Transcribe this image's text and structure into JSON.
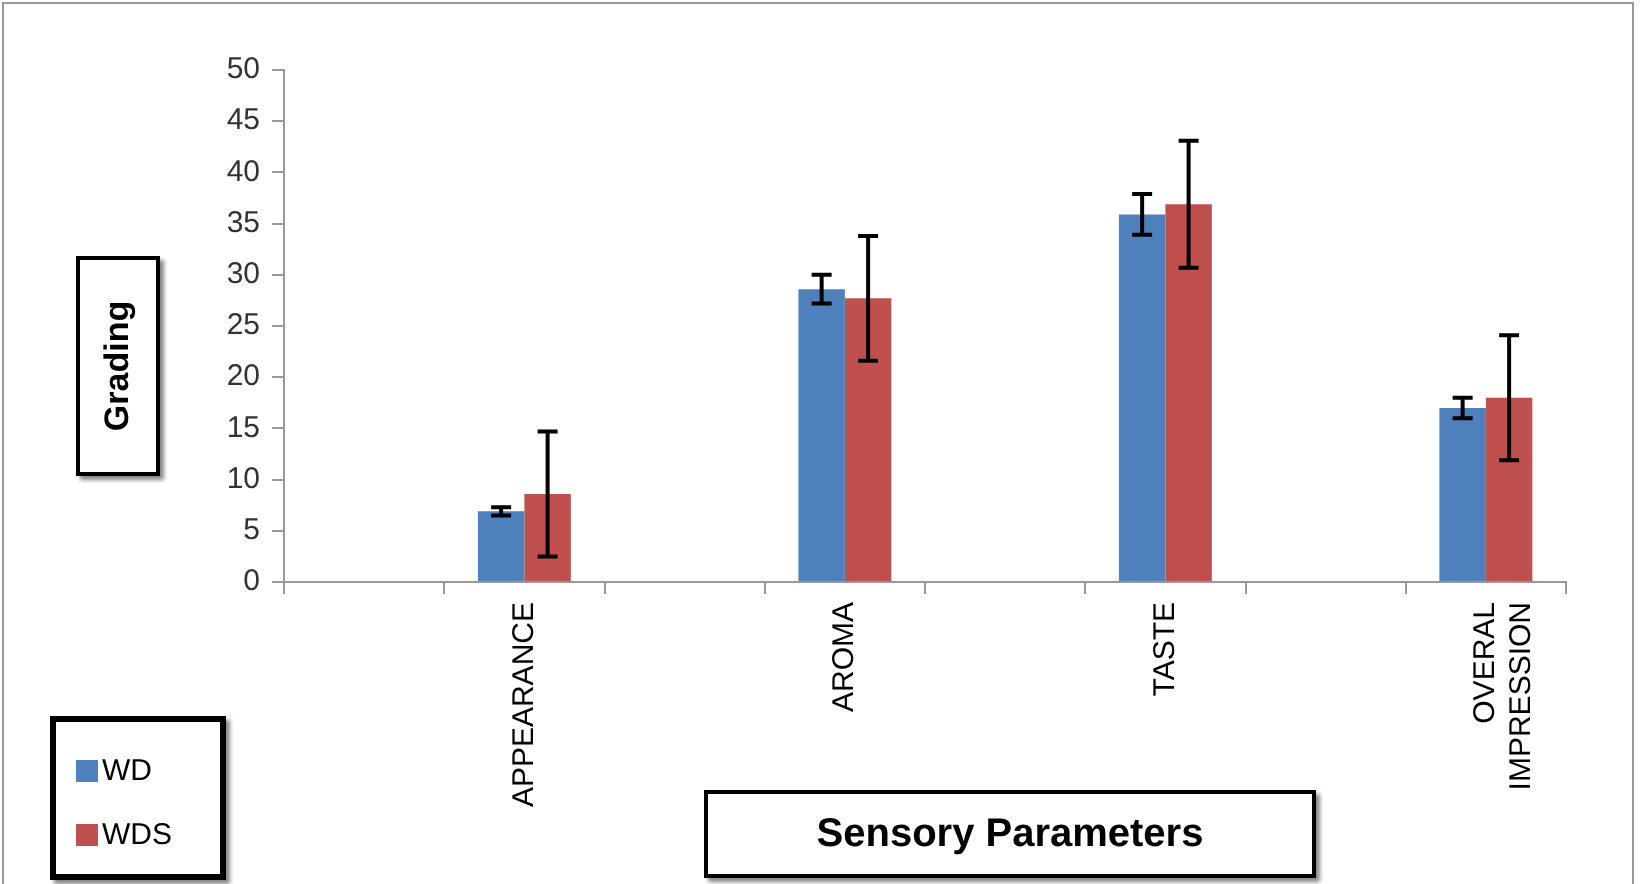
{
  "chart_data": {
    "type": "bar",
    "xlabel": "Sensory Parameters",
    "ylabel": "Grading",
    "categories": [
      null,
      "APPEARANCE",
      null,
      "AROMA",
      null,
      "TASTE",
      null,
      "OVERAL IMPRESSION"
    ],
    "series": [
      {
        "name": "WD",
        "color": "#4f81bd",
        "values": [
          null,
          6.9,
          null,
          28.6,
          null,
          35.9,
          null,
          17.0
        ],
        "errors": [
          null,
          0.4,
          null,
          1.4,
          null,
          2.0,
          null,
          1.0
        ]
      },
      {
        "name": "WDS",
        "color": "#c0504d",
        "values": [
          null,
          8.6,
          null,
          27.7,
          null,
          36.9,
          null,
          18.0
        ],
        "errors": [
          null,
          6.1,
          null,
          6.1,
          null,
          6.2,
          null,
          6.1
        ]
      }
    ],
    "ylim": [
      0,
      50
    ],
    "yticks": [
      0,
      5,
      10,
      15,
      20,
      25,
      30,
      35,
      40,
      45,
      50
    ],
    "grid": false,
    "legend": "bottom left"
  }
}
